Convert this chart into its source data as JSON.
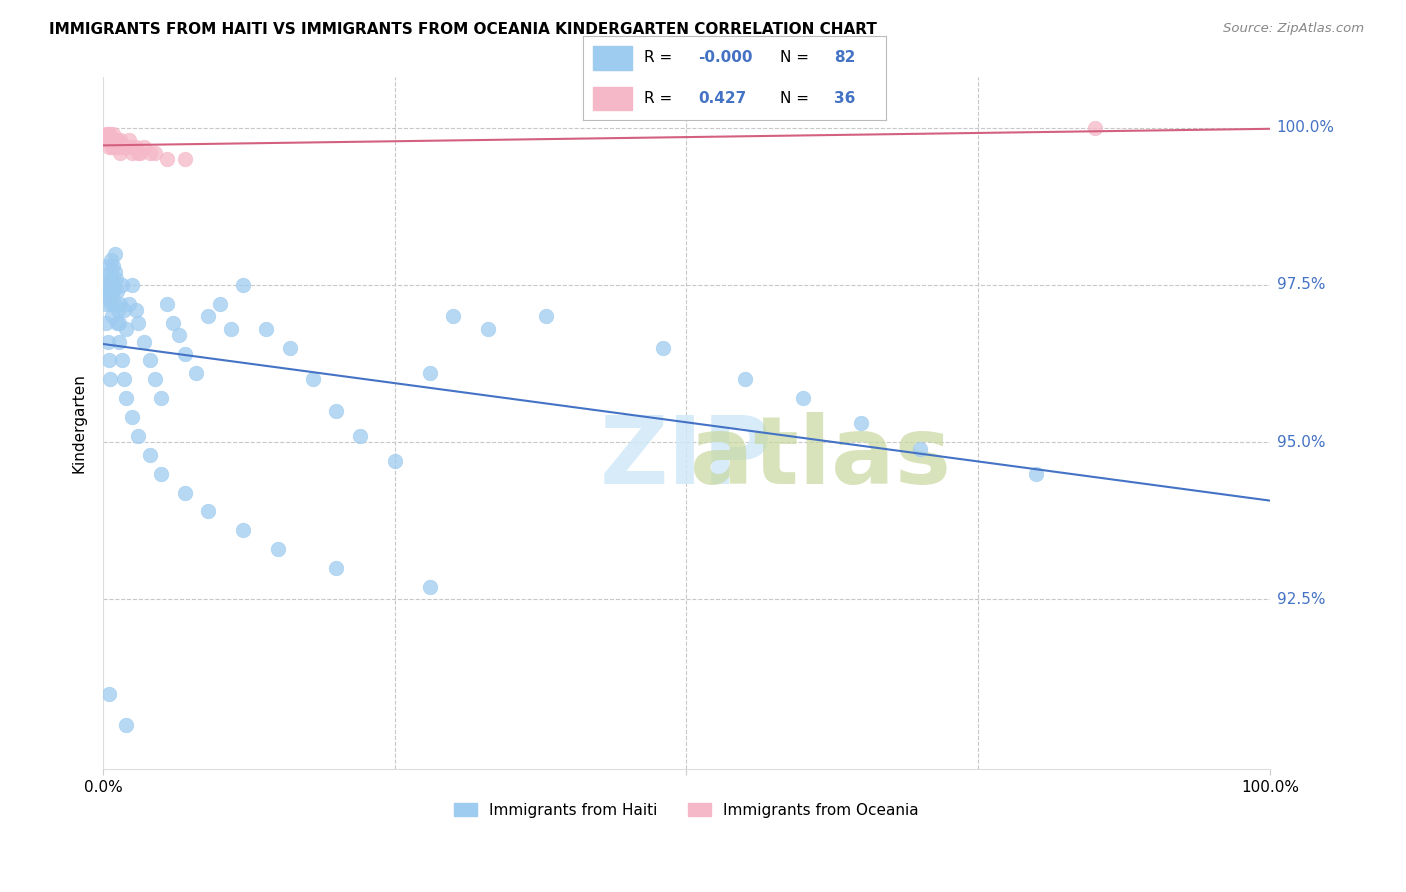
{
  "title": "IMMIGRANTS FROM HAITI VS IMMIGRANTS FROM OCEANIA KINDERGARTEN CORRELATION CHART",
  "source": "Source: ZipAtlas.com",
  "ylabel": "Kindergarten",
  "haiti_color": "#9ecbf0",
  "oceania_color": "#f5b8c8",
  "regression_haiti_color": "#4472c4",
  "regression_oceania_color": "#d46080",
  "background_color": "#ffffff",
  "grid_color": "#c8c8c8",
  "ytick_color": "#4472c4",
  "xlim": [
    0.0,
    1.0
  ],
  "ylim": [
    0.898,
    1.008
  ],
  "yticks": [
    0.925,
    0.95,
    0.975,
    1.0
  ],
  "ytick_labels": [
    "92.5%",
    "95.0%",
    "97.5%",
    "100.0%"
  ],
  "legend_haiti_R": "-0.000",
  "legend_haiti_N": "82",
  "legend_oceania_R": "0.427",
  "legend_oceania_N": "36",
  "haiti_x": [
    0.003,
    0.003,
    0.004,
    0.004,
    0.005,
    0.005,
    0.006,
    0.006,
    0.007,
    0.007,
    0.008,
    0.008,
    0.009,
    0.009,
    0.01,
    0.01,
    0.011,
    0.012,
    0.013,
    0.014,
    0.015,
    0.016,
    0.018,
    0.02,
    0.022,
    0.025,
    0.028,
    0.03,
    0.035,
    0.04,
    0.045,
    0.05,
    0.055,
    0.06,
    0.065,
    0.07,
    0.08,
    0.09,
    0.1,
    0.11,
    0.12,
    0.14,
    0.16,
    0.18,
    0.2,
    0.22,
    0.25,
    0.28,
    0.3,
    0.33,
    0.003,
    0.004,
    0.005,
    0.006,
    0.007,
    0.008,
    0.009,
    0.01,
    0.012,
    0.014,
    0.016,
    0.018,
    0.02,
    0.025,
    0.03,
    0.04,
    0.05,
    0.07,
    0.09,
    0.12,
    0.15,
    0.2,
    0.28,
    0.38,
    0.48,
    0.55,
    0.6,
    0.65,
    0.7,
    0.8,
    0.005,
    0.02
  ],
  "haiti_y": [
    0.975,
    0.972,
    0.978,
    0.974,
    0.976,
    0.973,
    0.977,
    0.974,
    0.979,
    0.976,
    0.974,
    0.97,
    0.978,
    0.975,
    0.98,
    0.977,
    0.976,
    0.974,
    0.971,
    0.969,
    0.972,
    0.975,
    0.971,
    0.968,
    0.972,
    0.975,
    0.971,
    0.969,
    0.966,
    0.963,
    0.96,
    0.957,
    0.972,
    0.969,
    0.967,
    0.964,
    0.961,
    0.97,
    0.972,
    0.968,
    0.975,
    0.968,
    0.965,
    0.96,
    0.955,
    0.951,
    0.947,
    0.961,
    0.97,
    0.968,
    0.969,
    0.966,
    0.963,
    0.96,
    0.972,
    0.975,
    0.974,
    0.972,
    0.969,
    0.966,
    0.963,
    0.96,
    0.957,
    0.954,
    0.951,
    0.948,
    0.945,
    0.942,
    0.939,
    0.936,
    0.933,
    0.93,
    0.927,
    0.97,
    0.965,
    0.96,
    0.957,
    0.953,
    0.949,
    0.945,
    0.91,
    0.905
  ],
  "oceania_x": [
    0.003,
    0.004,
    0.005,
    0.006,
    0.007,
    0.008,
    0.009,
    0.01,
    0.011,
    0.012,
    0.013,
    0.015,
    0.017,
    0.02,
    0.022,
    0.025,
    0.028,
    0.032,
    0.035,
    0.04,
    0.003,
    0.005,
    0.007,
    0.009,
    0.012,
    0.015,
    0.02,
    0.03,
    0.045,
    0.07,
    0.005,
    0.009,
    0.015,
    0.025,
    0.055,
    0.85
  ],
  "oceania_y": [
    0.999,
    0.998,
    0.999,
    0.998,
    0.998,
    0.997,
    0.999,
    0.998,
    0.997,
    0.998,
    0.997,
    0.998,
    0.997,
    0.997,
    0.998,
    0.997,
    0.997,
    0.996,
    0.997,
    0.996,
    0.998,
    0.997,
    0.998,
    0.997,
    0.997,
    0.996,
    0.997,
    0.996,
    0.996,
    0.995,
    0.999,
    0.998,
    0.997,
    0.996,
    0.995,
    1.0
  ],
  "watermark": "ZIPatlas"
}
